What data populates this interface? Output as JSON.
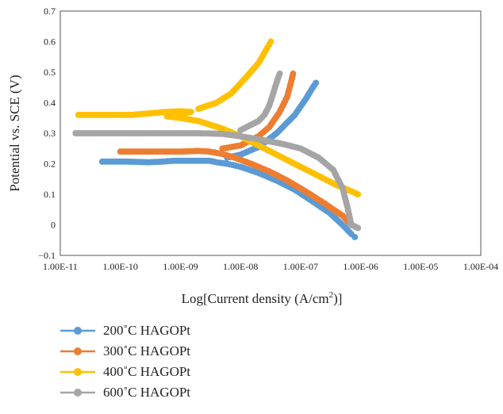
{
  "chart_data": {
    "type": "scatter",
    "xlabel_main": "Log[Current density (A/cm",
    "xlabel_sup": "2",
    "xlabel_end": ")]",
    "ylabel": "Potential vs. SCE (V)",
    "x_scale": "log",
    "xlim": [
      1e-11,
      0.0001
    ],
    "ylim": [
      -0.1,
      0.7
    ],
    "x_ticks": [
      1e-11,
      1e-10,
      1e-09,
      1e-08,
      1e-07,
      1e-06,
      1e-05,
      0.0001
    ],
    "x_tick_labels": [
      "1.00E-11",
      "1.00E-10",
      "1.00E-09",
      "1.00E-08",
      "1.00E-07",
      "1.00E-06",
      "1.00E-05",
      "1.00E-04"
    ],
    "y_ticks": [
      -0.1,
      0,
      0.1,
      0.2,
      0.3,
      0.4,
      0.5,
      0.6,
      0.7
    ],
    "y_tick_labels": [
      "−0.1",
      "0",
      "0.1",
      "0.2",
      "0.3",
      "0.4",
      "0.5",
      "0.6",
      "0.7"
    ],
    "grid": false,
    "legend_position": "bottom",
    "series": [
      {
        "name": "200˚C HAGOPt",
        "color": "#5b9bd5",
        "points": [
          [
            5e-11,
            0.207
          ],
          [
            7e-11,
            0.207
          ],
          [
            1.3e-10,
            0.207
          ],
          [
            2e-10,
            0.206
          ],
          [
            3e-10,
            0.205
          ],
          [
            5e-10,
            0.207
          ],
          [
            8e-10,
            0.21
          ],
          [
            1.2e-09,
            0.21
          ],
          [
            2e-09,
            0.21
          ],
          [
            3e-09,
            0.21
          ],
          [
            4e-09,
            0.205
          ],
          [
            6e-09,
            0.2
          ],
          [
            1e-08,
            0.19
          ],
          [
            2e-08,
            0.17
          ],
          [
            4e-08,
            0.145
          ],
          [
            8e-08,
            0.115
          ],
          [
            1.5e-07,
            0.08
          ],
          [
            3e-07,
            0.04
          ],
          [
            5e-07,
            0.0
          ],
          [
            7e-07,
            -0.03
          ],
          [
            8e-07,
            -0.04
          ],
          [
            6e-09,
            0.22
          ],
          [
            1e-08,
            0.23
          ],
          [
            2e-08,
            0.255
          ],
          [
            4e-08,
            0.3
          ],
          [
            8e-08,
            0.36
          ],
          [
            1.2e-07,
            0.41
          ],
          [
            1.6e-07,
            0.45
          ],
          [
            1.8e-07,
            0.465
          ]
        ]
      },
      {
        "name": "300˚C HAGOPt",
        "color": "#ed7d31",
        "points": [
          [
            1e-10,
            0.24
          ],
          [
            2e-10,
            0.24
          ],
          [
            6e-10,
            0.24
          ],
          [
            1e-09,
            0.24
          ],
          [
            2e-09,
            0.242
          ],
          [
            3e-09,
            0.24
          ],
          [
            5e-09,
            0.232
          ],
          [
            8e-09,
            0.22
          ],
          [
            1.5e-08,
            0.2
          ],
          [
            3e-08,
            0.175
          ],
          [
            6e-08,
            0.145
          ],
          [
            1.2e-07,
            0.11
          ],
          [
            2.5e-07,
            0.07
          ],
          [
            5e-07,
            0.03
          ],
          [
            7e-07,
            0.0
          ],
          [
            9e-07,
            -0.01
          ],
          [
            5e-09,
            0.25
          ],
          [
            1e-08,
            0.26
          ],
          [
            2e-08,
            0.29
          ],
          [
            3e-08,
            0.32
          ],
          [
            4.5e-08,
            0.37
          ],
          [
            6e-08,
            0.42
          ],
          [
            7e-08,
            0.47
          ],
          [
            7.5e-08,
            0.495
          ]
        ]
      },
      {
        "name": "400˚C HAGOPt",
        "color": "#ffc000",
        "points": [
          [
            2e-11,
            0.36
          ],
          [
            3e-11,
            0.36
          ],
          [
            8e-11,
            0.36
          ],
          [
            1.5e-10,
            0.36
          ],
          [
            3e-10,
            0.365
          ],
          [
            6e-10,
            0.37
          ],
          [
            1e-09,
            0.372
          ],
          [
            1.5e-09,
            0.37
          ],
          [
            6e-10,
            0.355
          ],
          [
            1e-09,
            0.35
          ],
          [
            2e-09,
            0.34
          ],
          [
            5e-09,
            0.315
          ],
          [
            1e-08,
            0.29
          ],
          [
            2e-08,
            0.26
          ],
          [
            5e-08,
            0.22
          ],
          [
            1e-07,
            0.19
          ],
          [
            2e-07,
            0.16
          ],
          [
            4e-07,
            0.13
          ],
          [
            7e-07,
            0.11
          ],
          [
            9e-07,
            0.1
          ],
          [
            2e-09,
            0.38
          ],
          [
            4e-09,
            0.4
          ],
          [
            7e-09,
            0.43
          ],
          [
            1.2e-08,
            0.48
          ],
          [
            2e-08,
            0.53
          ],
          [
            2.8e-08,
            0.58
          ],
          [
            3.2e-08,
            0.6
          ]
        ]
      },
      {
        "name": "600˚C HAGOPt",
        "color": "#a5a5a5",
        "points": [
          [
            1.8e-11,
            0.3
          ],
          [
            2e-10,
            0.3
          ],
          [
            3e-10,
            0.3
          ],
          [
            6e-10,
            0.3
          ],
          [
            1e-09,
            0.3
          ],
          [
            2e-09,
            0.3
          ],
          [
            5e-09,
            0.298
          ],
          [
            1e-08,
            0.29
          ],
          [
            2e-08,
            0.28
          ],
          [
            5e-08,
            0.265
          ],
          [
            1e-07,
            0.25
          ],
          [
            2e-07,
            0.22
          ],
          [
            3.5e-07,
            0.18
          ],
          [
            5e-07,
            0.12
          ],
          [
            6e-07,
            0.06
          ],
          [
            7e-07,
            0.0
          ],
          [
            9e-07,
            -0.01
          ],
          [
            1e-08,
            0.31
          ],
          [
            2e-08,
            0.34
          ],
          [
            2.5e-08,
            0.36
          ],
          [
            3e-08,
            0.39
          ],
          [
            3.5e-08,
            0.43
          ],
          [
            4.2e-08,
            0.48
          ],
          [
            4.5e-08,
            0.495
          ]
        ]
      }
    ]
  }
}
